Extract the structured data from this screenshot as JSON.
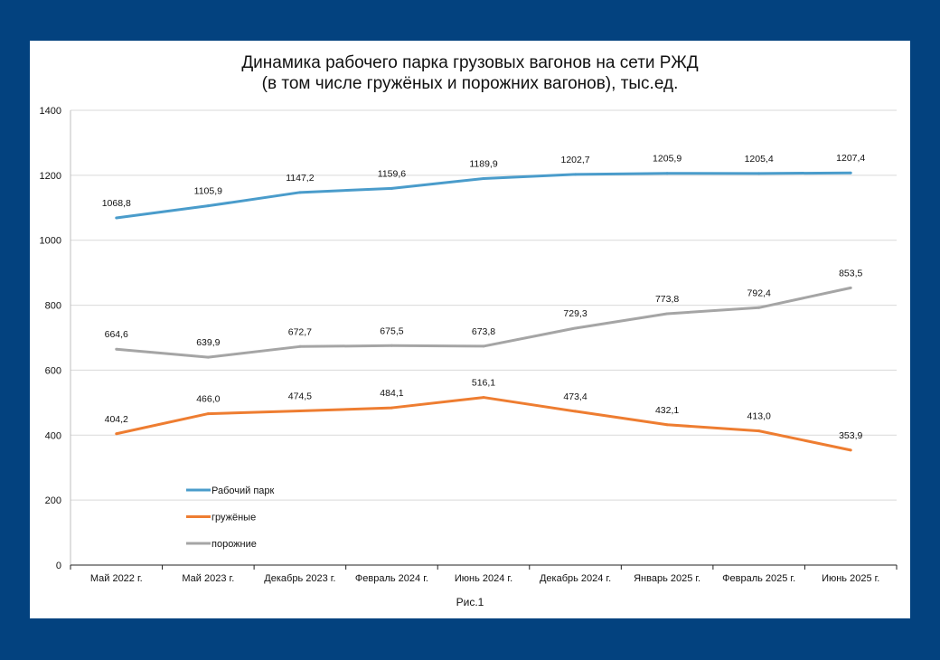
{
  "chart_data": {
    "type": "line",
    "title": "Динамика  рабочего парка грузовых вагонов на сети РЖД",
    "subtitle": "(в том числе гружёных и порожних  вагонов), тыс.ед.",
    "categories": [
      "Май 2022 г.",
      "Май 2023 г.",
      "Декабрь 2023 г.",
      "Февраль 2024 г.",
      "Июнь 2024 г.",
      "Декабрь 2024 г.",
      "Январь 2025 г.",
      "Февраль 2025 г.",
      "Июнь 2025 г."
    ],
    "ylim": [
      0,
      1400
    ],
    "yticks": [
      0,
      200,
      400,
      600,
      800,
      1000,
      1200,
      1400
    ],
    "grid": true,
    "legend_position": "bottom-left",
    "series": [
      {
        "name": "Рабочий парк",
        "color": "#4a9ccb",
        "values": [
          1068.8,
          1105.9,
          1147.2,
          1159.6,
          1189.9,
          1202.7,
          1205.9,
          1205.4,
          1207.4
        ]
      },
      {
        "name": "гружёные",
        "color": "#ee7d31",
        "values": [
          404.2,
          466.0,
          474.5,
          484.1,
          516.1,
          473.4,
          432.1,
          413.0,
          353.9
        ]
      },
      {
        "name": "порожние",
        "color": "#a5a5a5",
        "values": [
          664.6,
          639.9,
          672.7,
          675.5,
          673.8,
          729.3,
          773.8,
          792.4,
          853.5
        ]
      }
    ]
  },
  "caption": "Рис.1",
  "colors": {
    "background": "#03427f",
    "panel": "#ffffff"
  }
}
